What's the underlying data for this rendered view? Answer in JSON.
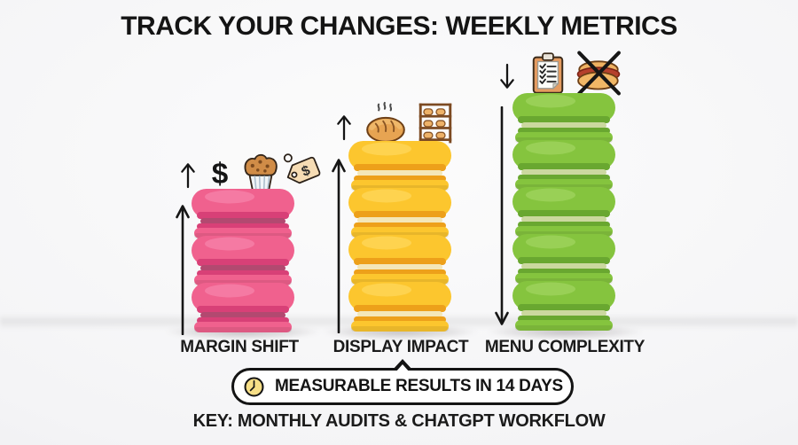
{
  "title": "TRACK YOUR CHANGES: WEEKLY METRICS",
  "palette": {
    "background": "#f2f2f4",
    "text": "#141414",
    "outline": "#141414"
  },
  "stacks": [
    {
      "id": "margin-shift",
      "label": "MARGIN SHIFT",
      "macaron_count": 3,
      "trend_arrow": "up",
      "icons": [
        "arrow-up",
        "dollar",
        "muffin",
        "price-tag"
      ],
      "colors": {
        "shell": "#f0618e",
        "shell_light": "#f98bb0",
        "ruffle": "#d84077",
        "filling": "#b24970"
      }
    },
    {
      "id": "display-impact",
      "label": "DISPLAY IMPACT",
      "macaron_count": 4,
      "trend_arrow": "up",
      "icons": [
        "arrow-up",
        "bread-loaf",
        "bakery-shelf"
      ],
      "colors": {
        "shell": "#fcc62e",
        "shell_light": "#ffdc66",
        "ruffle": "#eda01a",
        "filling": "#f4e7b8"
      }
    },
    {
      "id": "menu-complexity",
      "label": "MENU COMPLEXITY",
      "macaron_count": 5,
      "trend_arrow": "down",
      "icons": [
        "arrow-down",
        "checklist-clipboard",
        "no-hotdog"
      ],
      "colors": {
        "shell": "#85c43e",
        "shell_light": "#a6d968",
        "ruffle": "#69a730",
        "filling": "#cbd89f"
      }
    }
  ],
  "callout": {
    "icon": "clock",
    "text": "MEASURABLE RESULTS IN 14 DAYS",
    "clock_face_color": "#f7df87"
  },
  "footer": "KEY: MONTHLY AUDITS & CHATGPT WORKFLOW"
}
